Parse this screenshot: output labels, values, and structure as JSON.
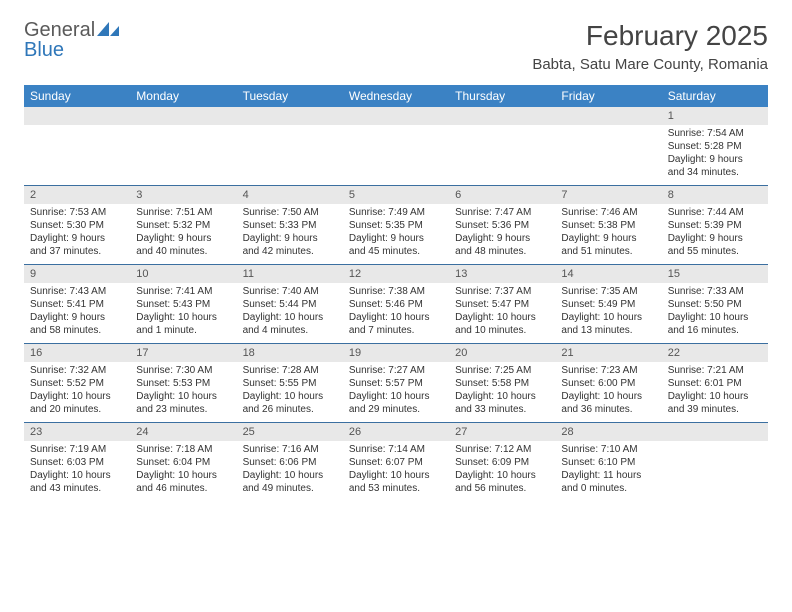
{
  "logo": {
    "text_general": "General",
    "text_blue": "Blue"
  },
  "title": "February 2025",
  "location": "Babta, Satu Mare County, Romania",
  "dow_header_bg": "#3b82c4",
  "dow_header_fg": "#ffffff",
  "week_border_color": "#3b6fa0",
  "daynum_bg": "#e8e8e8",
  "dows": [
    "Sunday",
    "Monday",
    "Tuesday",
    "Wednesday",
    "Thursday",
    "Friday",
    "Saturday"
  ],
  "weeks": [
    [
      null,
      null,
      null,
      null,
      null,
      null,
      {
        "n": "1",
        "sr": "7:54 AM",
        "ss": "5:28 PM",
        "dl": "9 hours and 34 minutes."
      }
    ],
    [
      {
        "n": "2",
        "sr": "7:53 AM",
        "ss": "5:30 PM",
        "dl": "9 hours and 37 minutes."
      },
      {
        "n": "3",
        "sr": "7:51 AM",
        "ss": "5:32 PM",
        "dl": "9 hours and 40 minutes."
      },
      {
        "n": "4",
        "sr": "7:50 AM",
        "ss": "5:33 PM",
        "dl": "9 hours and 42 minutes."
      },
      {
        "n": "5",
        "sr": "7:49 AM",
        "ss": "5:35 PM",
        "dl": "9 hours and 45 minutes."
      },
      {
        "n": "6",
        "sr": "7:47 AM",
        "ss": "5:36 PM",
        "dl": "9 hours and 48 minutes."
      },
      {
        "n": "7",
        "sr": "7:46 AM",
        "ss": "5:38 PM",
        "dl": "9 hours and 51 minutes."
      },
      {
        "n": "8",
        "sr": "7:44 AM",
        "ss": "5:39 PM",
        "dl": "9 hours and 55 minutes."
      }
    ],
    [
      {
        "n": "9",
        "sr": "7:43 AM",
        "ss": "5:41 PM",
        "dl": "9 hours and 58 minutes."
      },
      {
        "n": "10",
        "sr": "7:41 AM",
        "ss": "5:43 PM",
        "dl": "10 hours and 1 minute."
      },
      {
        "n": "11",
        "sr": "7:40 AM",
        "ss": "5:44 PM",
        "dl": "10 hours and 4 minutes."
      },
      {
        "n": "12",
        "sr": "7:38 AM",
        "ss": "5:46 PM",
        "dl": "10 hours and 7 minutes."
      },
      {
        "n": "13",
        "sr": "7:37 AM",
        "ss": "5:47 PM",
        "dl": "10 hours and 10 minutes."
      },
      {
        "n": "14",
        "sr": "7:35 AM",
        "ss": "5:49 PM",
        "dl": "10 hours and 13 minutes."
      },
      {
        "n": "15",
        "sr": "7:33 AM",
        "ss": "5:50 PM",
        "dl": "10 hours and 16 minutes."
      }
    ],
    [
      {
        "n": "16",
        "sr": "7:32 AM",
        "ss": "5:52 PM",
        "dl": "10 hours and 20 minutes."
      },
      {
        "n": "17",
        "sr": "7:30 AM",
        "ss": "5:53 PM",
        "dl": "10 hours and 23 minutes."
      },
      {
        "n": "18",
        "sr": "7:28 AM",
        "ss": "5:55 PM",
        "dl": "10 hours and 26 minutes."
      },
      {
        "n": "19",
        "sr": "7:27 AM",
        "ss": "5:57 PM",
        "dl": "10 hours and 29 minutes."
      },
      {
        "n": "20",
        "sr": "7:25 AM",
        "ss": "5:58 PM",
        "dl": "10 hours and 33 minutes."
      },
      {
        "n": "21",
        "sr": "7:23 AM",
        "ss": "6:00 PM",
        "dl": "10 hours and 36 minutes."
      },
      {
        "n": "22",
        "sr": "7:21 AM",
        "ss": "6:01 PM",
        "dl": "10 hours and 39 minutes."
      }
    ],
    [
      {
        "n": "23",
        "sr": "7:19 AM",
        "ss": "6:03 PM",
        "dl": "10 hours and 43 minutes."
      },
      {
        "n": "24",
        "sr": "7:18 AM",
        "ss": "6:04 PM",
        "dl": "10 hours and 46 minutes."
      },
      {
        "n": "25",
        "sr": "7:16 AM",
        "ss": "6:06 PM",
        "dl": "10 hours and 49 minutes."
      },
      {
        "n": "26",
        "sr": "7:14 AM",
        "ss": "6:07 PM",
        "dl": "10 hours and 53 minutes."
      },
      {
        "n": "27",
        "sr": "7:12 AM",
        "ss": "6:09 PM",
        "dl": "10 hours and 56 minutes."
      },
      {
        "n": "28",
        "sr": "7:10 AM",
        "ss": "6:10 PM",
        "dl": "11 hours and 0 minutes."
      },
      null
    ]
  ],
  "labels": {
    "sunrise_prefix": "Sunrise: ",
    "sunset_prefix": "Sunset: ",
    "daylight_prefix": "Daylight: "
  }
}
